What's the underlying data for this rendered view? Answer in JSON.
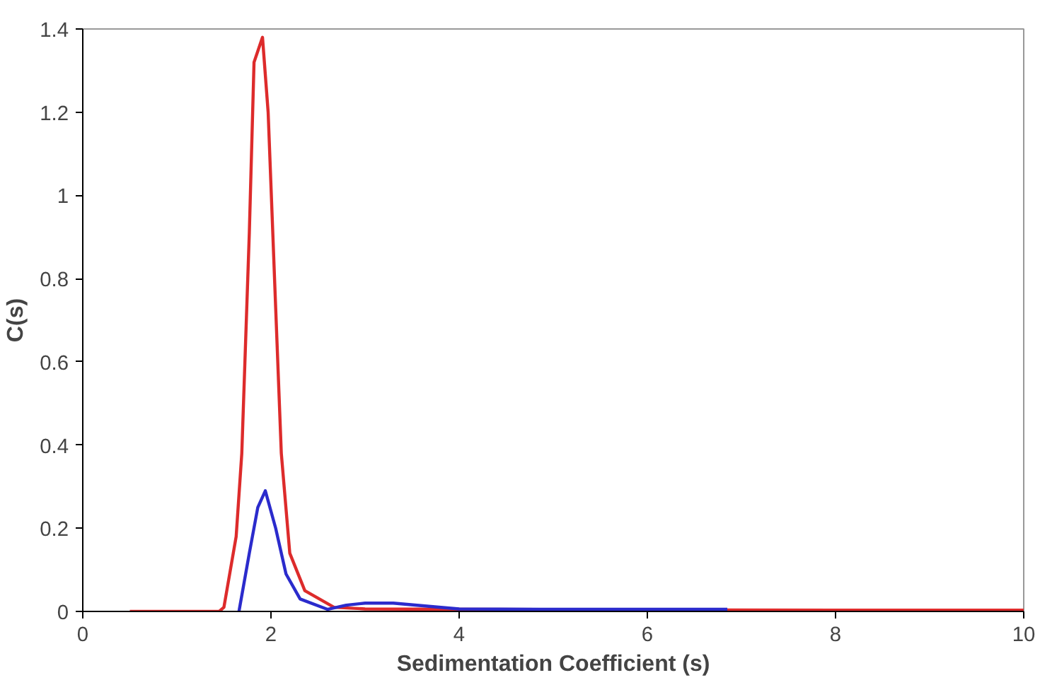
{
  "chart_data": {
    "type": "line",
    "xlabel": "Sedimentation Coefficient (s)",
    "ylabel": "C(s)",
    "xlim": [
      0,
      10
    ],
    "ylim": [
      0,
      1.4
    ],
    "xticks": [
      0,
      2,
      4,
      6,
      8,
      10
    ],
    "yticks": [
      0,
      0.2,
      0.4,
      0.6,
      0.8,
      1,
      1.2,
      1.4
    ],
    "grid": false,
    "marker": "none",
    "line_style": "solid",
    "series": [
      {
        "color": "#dd2b2b",
        "x": [
          0.5,
          1.0,
          1.45,
          1.5,
          1.63,
          1.69,
          1.77,
          1.82,
          1.91,
          1.97,
          2.05,
          2.11,
          2.2,
          2.36,
          2.67,
          3.0,
          4.0,
          6.0,
          8.0,
          10.0
        ],
        "values": [
          0,
          0,
          0,
          0.01,
          0.18,
          0.38,
          0.91,
          1.32,
          1.38,
          1.2,
          0.73,
          0.38,
          0.14,
          0.05,
          0.01,
          0.006,
          0.005,
          0.004,
          0.003,
          0.003
        ]
      },
      {
        "color": "#2b2bcc",
        "x": [
          1.66,
          1.77,
          1.86,
          1.94,
          2.05,
          2.16,
          2.31,
          2.6,
          2.8,
          3.0,
          3.3,
          3.7,
          4.0,
          5.0,
          6.0,
          6.85
        ],
        "values": [
          0,
          0.14,
          0.25,
          0.29,
          0.2,
          0.09,
          0.03,
          0.005,
          0.015,
          0.02,
          0.02,
          0.012,
          0.006,
          0.005,
          0.005,
          0.005
        ]
      }
    ]
  }
}
